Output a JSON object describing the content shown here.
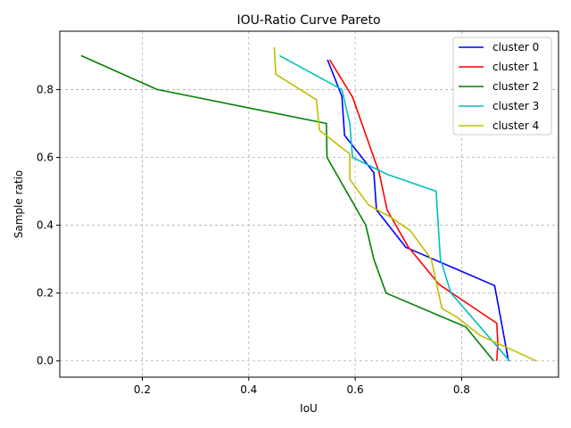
{
  "chart_data": {
    "type": "line",
    "title": "IOU-Ratio Curve Pareto",
    "xlabel": "IoU",
    "ylabel": "Sample ratio",
    "xlim": [
      0.045,
      0.982
    ],
    "ylim": [
      -0.048,
      0.972
    ],
    "xticks": [
      0.2,
      0.4,
      0.6,
      0.8
    ],
    "xtick_labels": [
      "0.2",
      "0.4",
      "0.6",
      "0.8"
    ],
    "yticks": [
      0.0,
      0.2,
      0.4,
      0.6,
      0.8
    ],
    "ytick_labels": [
      "0.0",
      "0.2",
      "0.4",
      "0.6",
      "0.8"
    ],
    "grid": true,
    "legend_position": "top-right",
    "series": [
      {
        "name": "cluster 0",
        "color": "#0000ff",
        "x": [
          0.548,
          0.575,
          0.58,
          0.635,
          0.64,
          0.695,
          0.862,
          0.875,
          0.888
        ],
        "y": [
          0.888,
          0.78,
          0.665,
          0.555,
          0.445,
          0.335,
          0.222,
          0.111,
          0.0
        ]
      },
      {
        "name": "cluster 1",
        "color": "#ff0000",
        "x": [
          0.552,
          0.595,
          0.645,
          0.66,
          0.7,
          0.758,
          0.866,
          0.868,
          0.866
        ],
        "y": [
          0.888,
          0.778,
          0.555,
          0.445,
          0.335,
          0.225,
          0.111,
          0.05,
          0.0
        ]
      },
      {
        "name": "cluster 2",
        "color": "#008000",
        "x": [
          0.085,
          0.228,
          0.546,
          0.546,
          0.547,
          0.62,
          0.635,
          0.658,
          0.808,
          0.86
        ],
        "y": [
          0.9,
          0.8,
          0.7,
          0.685,
          0.6,
          0.4,
          0.3,
          0.2,
          0.1,
          0.0
        ]
      },
      {
        "name": "cluster 3",
        "color": "#00bfbf",
        "x": [
          0.458,
          0.575,
          0.59,
          0.595,
          0.66,
          0.752,
          0.756,
          0.76,
          0.78,
          0.89
        ],
        "y": [
          0.9,
          0.8,
          0.7,
          0.6,
          0.55,
          0.5,
          0.4,
          0.3,
          0.2,
          0.0
        ]
      },
      {
        "name": "cluster 4",
        "color": "#bfbf00",
        "x": [
          0.448,
          0.451,
          0.527,
          0.533,
          0.59,
          0.59,
          0.625,
          0.665,
          0.703,
          0.743,
          0.763,
          0.79,
          0.835,
          0.94
        ],
        "y": [
          0.925,
          0.845,
          0.77,
          0.68,
          0.61,
          0.535,
          0.46,
          0.425,
          0.385,
          0.3,
          0.155,
          0.13,
          0.075,
          0.0
        ]
      }
    ]
  }
}
